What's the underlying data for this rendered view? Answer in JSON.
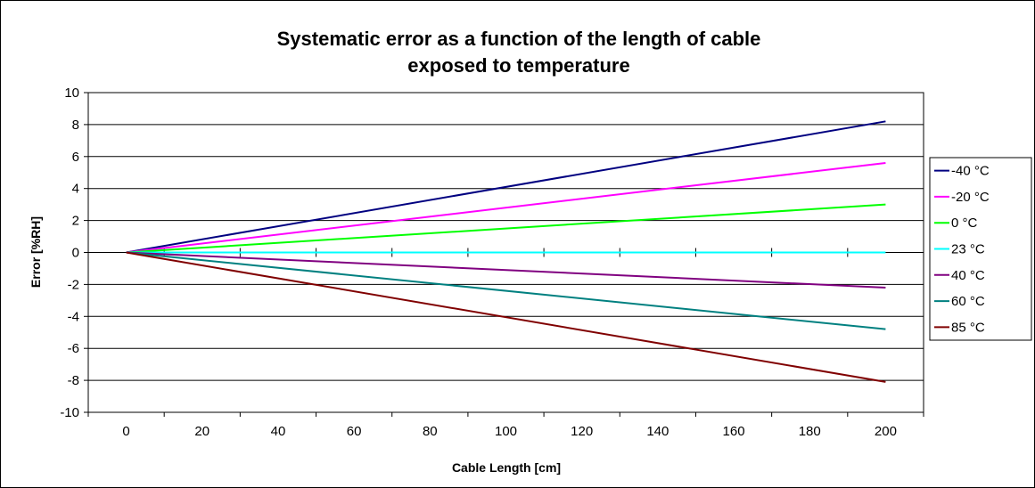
{
  "chart_data": {
    "type": "line",
    "title_lines": [
      "Systematic error as a function of the length of cable",
      "exposed to temperature"
    ],
    "xlabel": "Cable Length [cm]",
    "ylabel": "Error [%RH]",
    "xlim": [
      -10,
      210
    ],
    "ylim": [
      -10,
      10
    ],
    "x_ticks": [
      0,
      20,
      40,
      60,
      80,
      100,
      120,
      140,
      160,
      180,
      200
    ],
    "y_ticks": [
      -10,
      -8,
      -6,
      -4,
      -2,
      0,
      2,
      4,
      6,
      8,
      10
    ],
    "grid": "horizontal",
    "legend_position": "right",
    "x": [
      0,
      200
    ],
    "series": [
      {
        "name": "-40 °C",
        "color": "#000080",
        "values": [
          0,
          8.2
        ]
      },
      {
        "name": "-20 °C",
        "color": "#ff00ff",
        "values": [
          0,
          5.6
        ]
      },
      {
        "name": "0 °C",
        "color": "#00ff00",
        "values": [
          0,
          3.0
        ]
      },
      {
        "name": "23 °C",
        "color": "#00ffff",
        "values": [
          0,
          0
        ]
      },
      {
        "name": "40 °C",
        "color": "#800080",
        "values": [
          0,
          -2.2
        ]
      },
      {
        "name": "60 °C",
        "color": "#008080",
        "values": [
          0,
          -4.8
        ]
      },
      {
        "name": "85 °C",
        "color": "#800000",
        "values": [
          0,
          -8.1
        ]
      }
    ]
  }
}
